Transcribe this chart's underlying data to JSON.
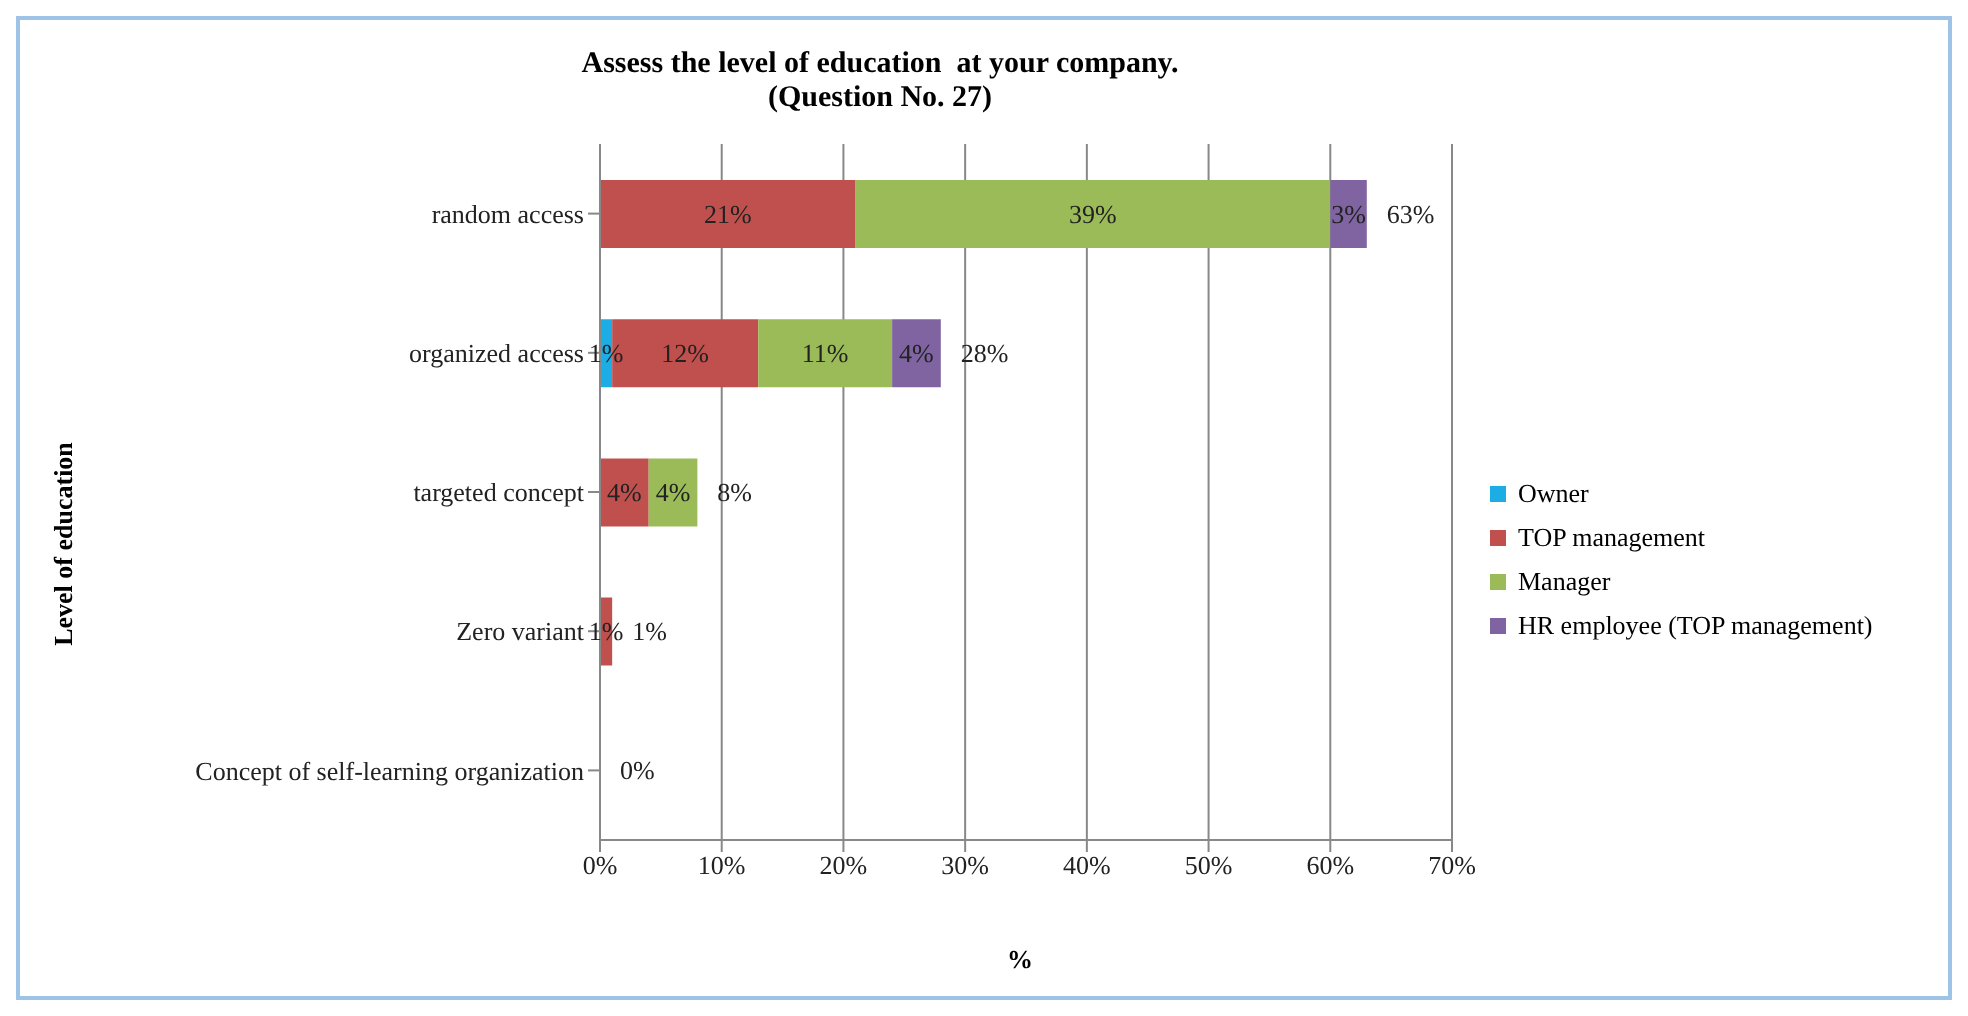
{
  "chart_data": {
    "type": "bar",
    "orientation": "horizontal",
    "stacked": true,
    "title": "Assess the level of education  at your company.\n(Question No. 27)",
    "xlabel": "%",
    "ylabel": "Level of education",
    "categories": [
      "random access",
      "organized access",
      "targeted concept",
      "Zero variant",
      "Concept of self-learning organization"
    ],
    "series": [
      {
        "name": "Owner",
        "color": "#1cade4",
        "values": [
          0,
          1,
          0,
          0,
          0
        ],
        "value_labels": [
          null,
          "1%",
          null,
          null,
          null
        ]
      },
      {
        "name": "TOP management",
        "color": "#c0504d",
        "values": [
          21,
          12,
          4,
          1,
          0
        ],
        "value_labels": [
          "21%",
          "12%",
          "4%",
          "1%",
          null
        ]
      },
      {
        "name": "Manager",
        "color": "#9bbb59",
        "values": [
          39,
          11,
          4,
          0,
          0
        ],
        "value_labels": [
          "39%",
          "11%",
          "4%",
          null,
          null
        ]
      },
      {
        "name": "HR employee (TOP management)",
        "color": "#8064a2",
        "values": [
          3,
          4,
          0,
          0,
          0
        ],
        "value_labels": [
          "3%",
          "4%",
          null,
          null,
          null
        ]
      }
    ],
    "totals": [
      "63%",
      "28%",
      "8%",
      "1%",
      "0%"
    ],
    "xlim": [
      0,
      70
    ],
    "xticks": [
      {
        "value": 0,
        "label": "0%"
      },
      {
        "value": 10,
        "label": "10%"
      },
      {
        "value": 20,
        "label": "20%"
      },
      {
        "value": 30,
        "label": "30%"
      },
      {
        "value": 40,
        "label": "40%"
      },
      {
        "value": 50,
        "label": "50%"
      },
      {
        "value": 60,
        "label": "60%"
      },
      {
        "value": 70,
        "label": "70%"
      }
    ],
    "grid": "x",
    "legend": "right"
  }
}
